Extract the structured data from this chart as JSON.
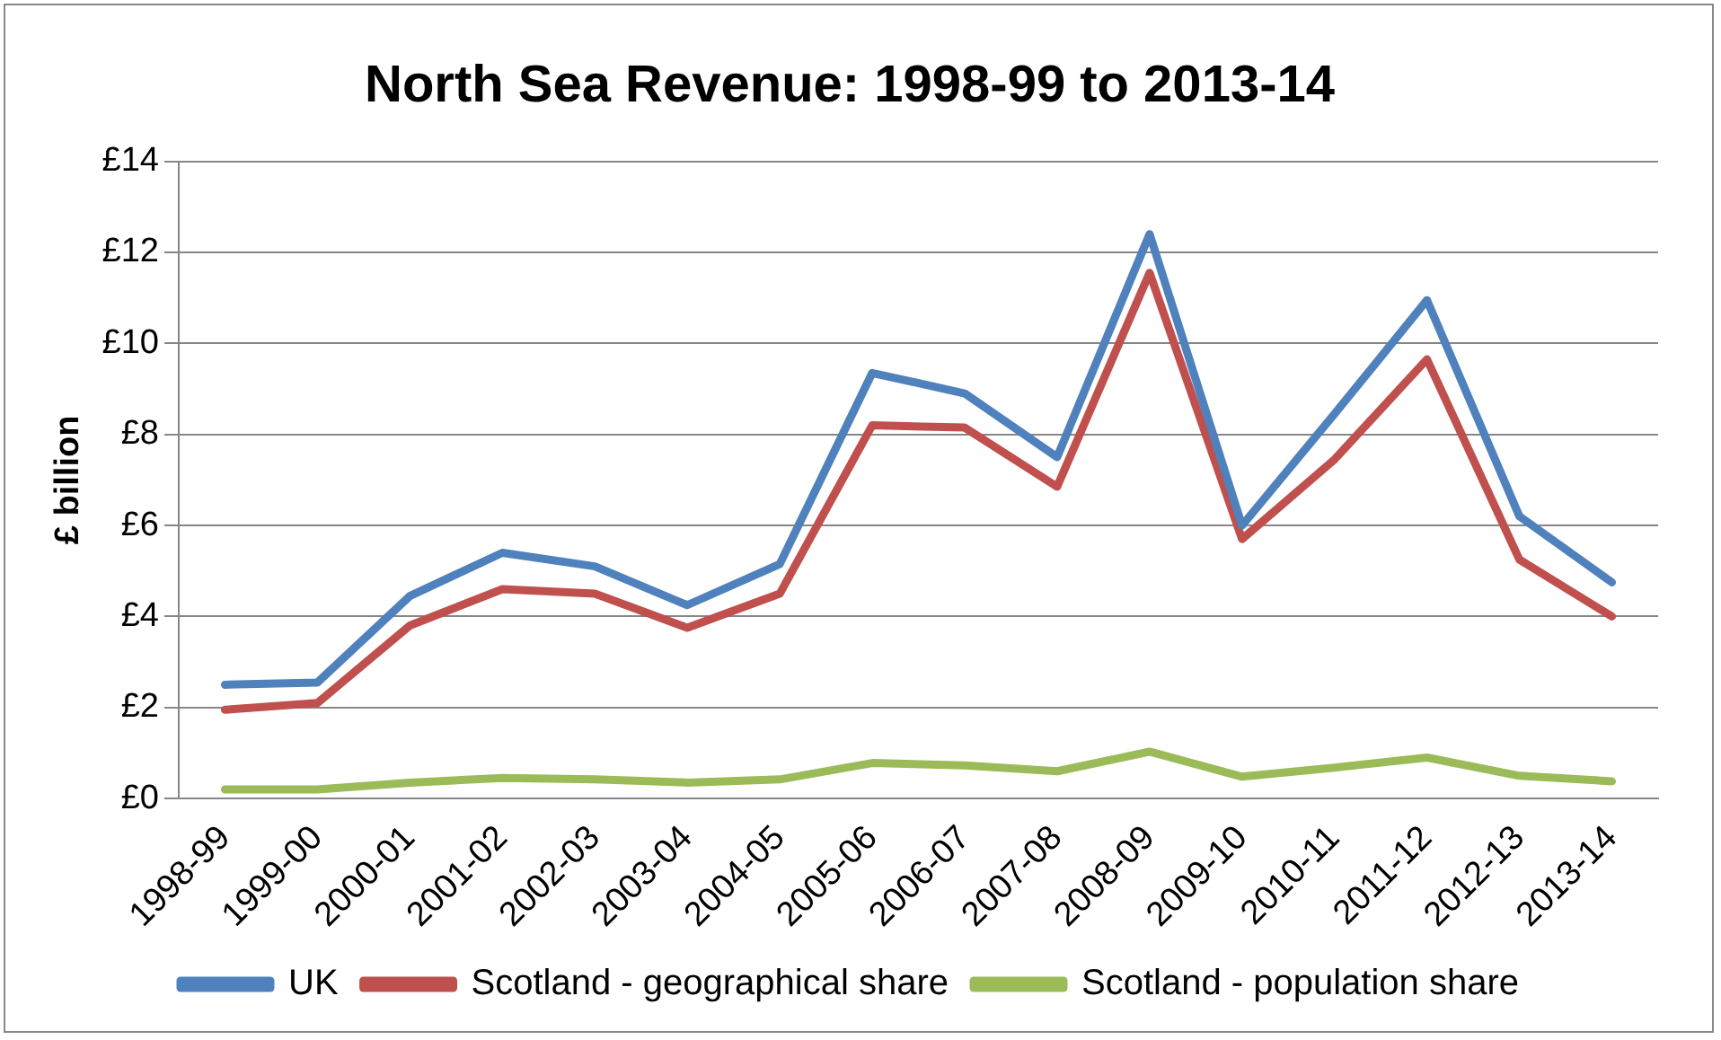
{
  "chart_data": {
    "type": "line",
    "title": "North Sea Revenue: 1998-99 to 2013-14",
    "ylabel": "£ billion",
    "categories": [
      "1998-99",
      "1999-00",
      "2000-01",
      "2001-02",
      "2002-03",
      "2003-04",
      "2004-05",
      "2005-06",
      "2006-07",
      "2007-08",
      "2008-09",
      "2009-10",
      "2010-11",
      "2011-12",
      "2012-13",
      "2013-14"
    ],
    "series": [
      {
        "name": "UK",
        "color": "#4f81bd",
        "values": [
          2.5,
          2.55,
          4.45,
          5.4,
          5.1,
          4.25,
          5.15,
          9.35,
          8.9,
          7.5,
          12.4,
          6.0,
          8.45,
          10.95,
          6.2,
          4.75
        ]
      },
      {
        "name": "Scotland - geographical share",
        "color": "#c0504d",
        "values": [
          1.95,
          2.1,
          3.8,
          4.6,
          4.5,
          3.75,
          4.5,
          8.2,
          8.15,
          6.85,
          11.55,
          5.7,
          7.45,
          9.65,
          5.25,
          4.0
        ]
      },
      {
        "name": "Scotland - population share",
        "color": "#9bbb59",
        "values": [
          0.2,
          0.2,
          0.35,
          0.45,
          0.42,
          0.35,
          0.42,
          0.78,
          0.73,
          0.6,
          1.03,
          0.48,
          0.68,
          0.9,
          0.5,
          0.38
        ]
      }
    ],
    "ylim": [
      0,
      14
    ],
    "yticks": [
      {
        "value": 0,
        "label": "£0"
      },
      {
        "value": 2,
        "label": "£2"
      },
      {
        "value": 4,
        "label": "£4"
      },
      {
        "value": 6,
        "label": "£6"
      },
      {
        "value": 8,
        "label": "£8"
      },
      {
        "value": 10,
        "label": "£10"
      },
      {
        "value": 12,
        "label": "£12"
      },
      {
        "value": 14,
        "label": "£14"
      }
    ],
    "grid": "y",
    "legend": "bottom",
    "marker": "none",
    "line_style": "solid"
  }
}
